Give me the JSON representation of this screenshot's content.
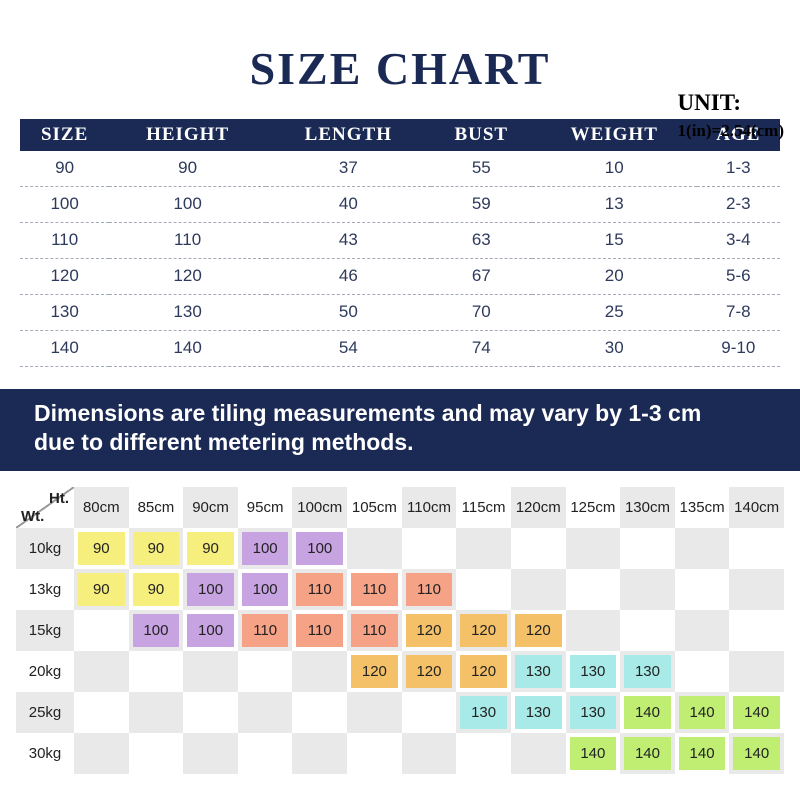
{
  "title": "SIZE CHART",
  "unit": {
    "label": "UNIT:",
    "formula": "1(in)=2.54(cm)"
  },
  "notice": {
    "line1": "Dimensions are tiling measurements and may vary by 1-3 cm",
    "line2": "due to different metering methods."
  },
  "colors": {
    "navy": "#1b2a55",
    "grid_alt": "#e9e9e9",
    "grid_base": "#ffffff"
  },
  "chart_data": [
    {
      "type": "table",
      "title": "SIZE CHART",
      "headers": [
        "SIZE",
        "HEIGHT",
        "LENGTH",
        "BUST",
        "WEIGHT",
        "AGE"
      ],
      "rows": [
        [
          "90",
          "90",
          "37",
          "55",
          "10",
          "1-3"
        ],
        [
          "100",
          "100",
          "40",
          "59",
          "13",
          "2-3"
        ],
        [
          "110",
          "110",
          "43",
          "63",
          "15",
          "3-4"
        ],
        [
          "120",
          "120",
          "46",
          "67",
          "20",
          "5-6"
        ],
        [
          "130",
          "130",
          "50",
          "70",
          "25",
          "7-8"
        ],
        [
          "140",
          "140",
          "54",
          "74",
          "30",
          "9-10"
        ]
      ]
    },
    {
      "type": "heatmap",
      "xlabel": "Ht.",
      "ylabel": "Wt.",
      "columns": [
        "80cm",
        "85cm",
        "90cm",
        "95cm",
        "100cm",
        "105cm",
        "110cm",
        "115cm",
        "120cm",
        "125cm",
        "130cm",
        "135cm",
        "140cm"
      ],
      "rows": [
        {
          "label": "10kg",
          "cells": [
            "90",
            "90",
            "90",
            "100",
            "100",
            "",
            "",
            "",
            "",
            "",
            "",
            "",
            ""
          ]
        },
        {
          "label": "13kg",
          "cells": [
            "90",
            "90",
            "100",
            "100",
            "110",
            "110",
            "110",
            "",
            "",
            "",
            "",
            "",
            ""
          ]
        },
        {
          "label": "15kg",
          "cells": [
            "",
            "100",
            "100",
            "110",
            "110",
            "110",
            "120",
            "120",
            "120",
            "",
            "",
            "",
            ""
          ]
        },
        {
          "label": "20kg",
          "cells": [
            "",
            "",
            "",
            "",
            "",
            "120",
            "120",
            "120",
            "130",
            "130",
            "130",
            "",
            ""
          ]
        },
        {
          "label": "25kg",
          "cells": [
            "",
            "",
            "",
            "",
            "",
            "",
            "",
            "130",
            "130",
            "130",
            "140",
            "140",
            "140"
          ]
        },
        {
          "label": "30kg",
          "cells": [
            "",
            "",
            "",
            "",
            "",
            "",
            "",
            "",
            "",
            "140",
            "140",
            "140",
            "140"
          ]
        }
      ],
      "cell_colors": {
        "90": "#f7ef7d",
        "100": "#c7a3e2",
        "110": "#f6a287",
        "120": "#f4c169",
        "130": "#a7eae8",
        "140": "#bfee72"
      }
    }
  ]
}
